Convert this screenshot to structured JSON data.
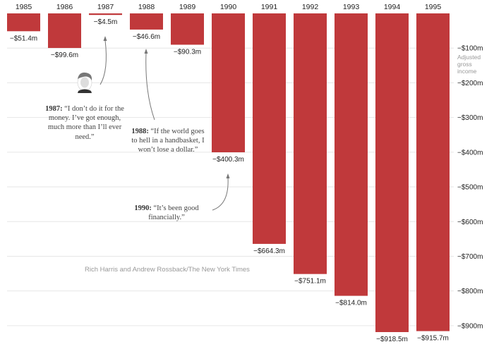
{
  "chart_data": {
    "type": "bar",
    "categories": [
      "1985",
      "1986",
      "1987",
      "1988",
      "1989",
      "1990",
      "1991",
      "1992",
      "1993",
      "1994",
      "1995"
    ],
    "values": [
      -51.4,
      -99.6,
      -4.5,
      -46.6,
      -90.3,
      -400.3,
      -664.3,
      -751.1,
      -814.0,
      -918.5,
      -915.7
    ],
    "value_labels": [
      "−$51.4m",
      "−$99.6m",
      "−$4.5m",
      "−$46.6m",
      "−$90.3m",
      "−$400.3m",
      "−$664.3m",
      "−$751.1m",
      "−$814.0m",
      "−$918.5m",
      "−$915.7m"
    ],
    "y_ticks": [
      -100,
      -200,
      -300,
      -400,
      -500,
      -600,
      -700,
      -800,
      -900
    ],
    "y_tick_labels": [
      "−$100m",
      "−$200m",
      "−$300m",
      "−$400m",
      "−$500m",
      "−$600m",
      "−$700m",
      "−$800m",
      "−$900m"
    ],
    "ylabel_lines": [
      "Adjusted",
      "gross",
      "income"
    ],
    "ylim": [
      -940,
      0
    ],
    "grid": true,
    "bar_color": "#c0393b",
    "annotations": [
      {
        "year_label": "1987:",
        "text": "“I don’t do it for the money. I’ve got enough, much more than I’ll ever need.”"
      },
      {
        "year_label": "1988:",
        "text": "“If the world goes to hell in a handbasket, I won’t lose a dollar.”"
      },
      {
        "year_label": "1990:",
        "text": "“It’s been good financially.”"
      }
    ],
    "credit": "Rich Harris and Andrew Rossback/The New York Times"
  }
}
